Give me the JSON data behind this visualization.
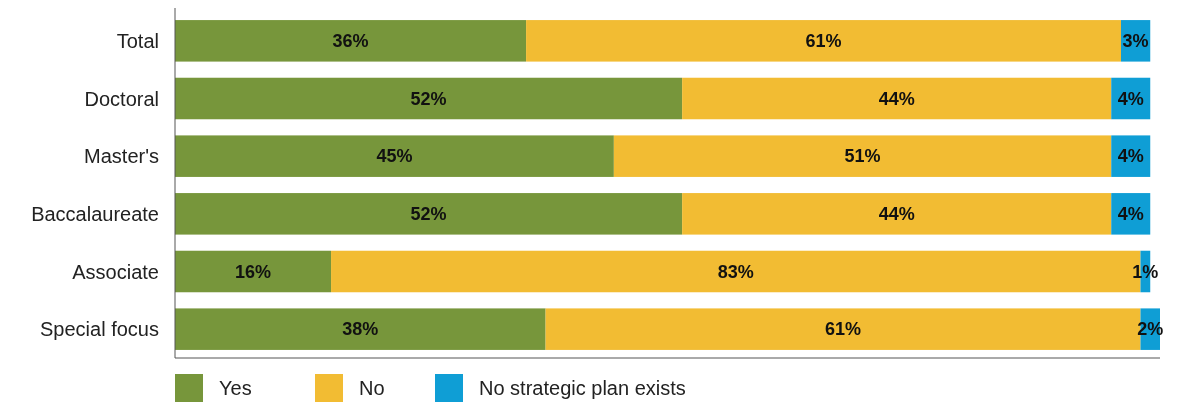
{
  "chart_data": {
    "type": "bar",
    "orientation": "horizontal",
    "stacked": true,
    "categories": [
      "Total",
      "Doctoral",
      "Master's",
      "Baccalaureate",
      "Associate",
      "Special focus"
    ],
    "series": [
      {
        "name": "Yes",
        "color": "#77963b",
        "values": [
          36,
          52,
          45,
          52,
          16,
          38
        ],
        "value_labels": [
          "36%",
          "52%",
          "45%",
          "52%",
          "16%",
          "38%"
        ]
      },
      {
        "name": "No",
        "color": "#f2bc33",
        "values": [
          61,
          44,
          51,
          44,
          83,
          61
        ],
        "value_labels": [
          "61%",
          "44%",
          "51%",
          "44%",
          "83%",
          "61%"
        ]
      },
      {
        "name": "No strategic plan exists",
        "color": "#0f9ed5",
        "values": [
          3,
          4,
          4,
          4,
          1,
          2
        ],
        "value_labels": [
          "3%",
          "4%",
          "4%",
          "4%",
          "1%",
          "2%"
        ]
      }
    ],
    "xlim": [
      0,
      101
    ],
    "tick_labels": "y",
    "legend": "bottom left"
  }
}
